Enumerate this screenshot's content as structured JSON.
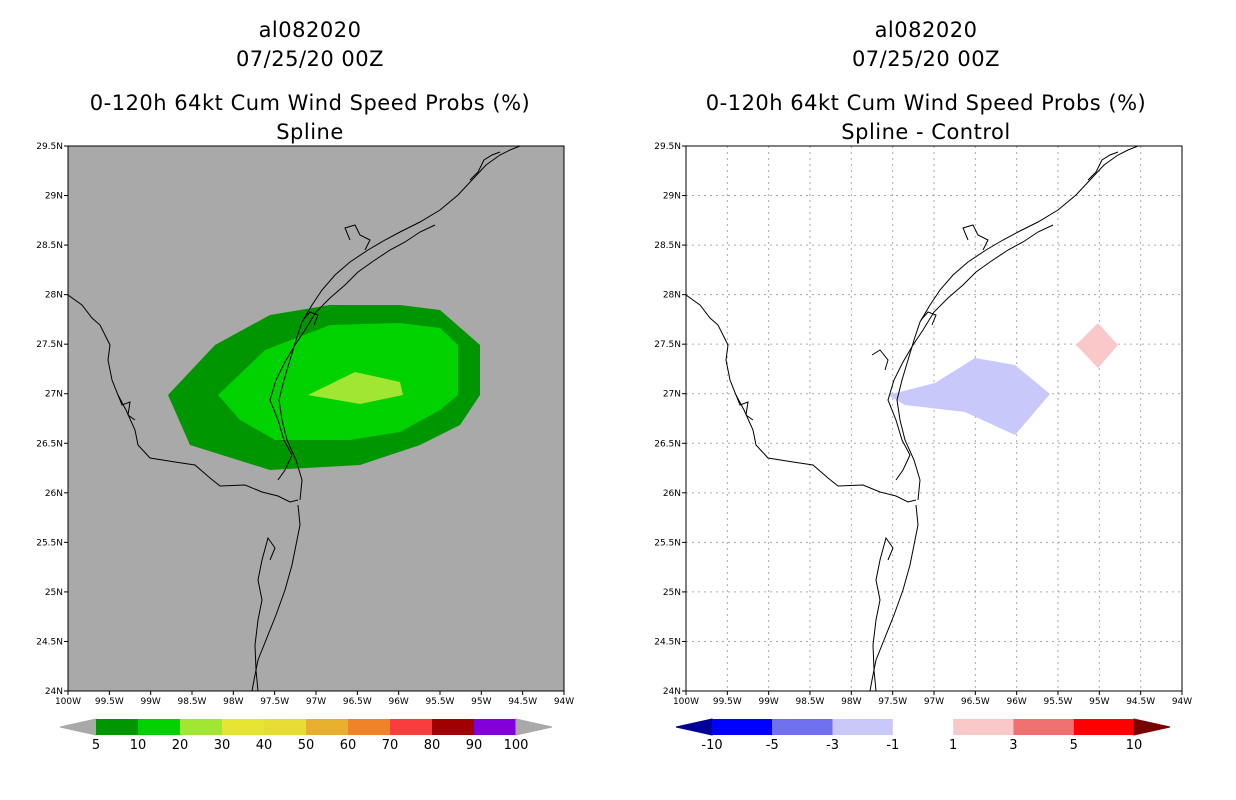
{
  "left": {
    "storm_id": "al082020",
    "datetime": "07/25/20 00Z",
    "product": "0-120h 64kt Cum Wind Speed Probs (%)",
    "subtitle": "Spline",
    "background_color": "#a9a9a9",
    "lat_labels": [
      "29.5N",
      "29N",
      "28.5N",
      "28N",
      "27.5N",
      "27N",
      "26.5N",
      "26N",
      "25.5N",
      "25N",
      "24.5N",
      "24N"
    ],
    "lon_labels": [
      "100W",
      "99.5W",
      "99W",
      "98.5W",
      "98W",
      "97.5W",
      "97W",
      "96.5W",
      "96W",
      "95.5W",
      "95W",
      "94.5W",
      "94W"
    ],
    "colorbar": {
      "colors": [
        "#009600",
        "#00d200",
        "#a0e632",
        "#e6e632",
        "#e6dc32",
        "#e6af2d",
        "#f08228",
        "#fa3c3c",
        "#a00000",
        "#8200dc"
      ],
      "labels": [
        "5",
        "10",
        "20",
        "30",
        "40",
        "50",
        "60",
        "70",
        "80",
        "90",
        "100"
      ],
      "under_color": "#a9a9a9",
      "over_color": "#a9a9a9"
    },
    "contours": [
      {
        "level": "5-10",
        "color": "#009600"
      },
      {
        "level": "10-20",
        "color": "#00d200"
      },
      {
        "level": "20-30",
        "color": "#a0e632"
      }
    ]
  },
  "right": {
    "storm_id": "al082020",
    "datetime": "07/25/20 00Z",
    "product": "0-120h 64kt Cum Wind Speed Probs (%)",
    "subtitle": "Spline - Control",
    "background_color": "#ffffff",
    "lat_labels": [
      "29.5N",
      "29N",
      "28.5N",
      "28N",
      "27.5N",
      "27N",
      "26.5N",
      "26N",
      "25.5N",
      "25N",
      "24.5N",
      "24N"
    ],
    "lon_labels": [
      "100W",
      "99.5W",
      "99W",
      "98.5W",
      "98W",
      "97.5W",
      "97W",
      "96.5W",
      "96W",
      "95.5W",
      "95W",
      "94.5W",
      "94W"
    ],
    "colorbar": {
      "colors": [
        "#0000ff",
        "#7070f0",
        "#c8c8fa",
        "#ffffff",
        "#fac8c8",
        "#f07070",
        "#ff0000"
      ],
      "labels": [
        "-10",
        "-5",
        "-3",
        "-1",
        "1",
        "3",
        "5",
        "10"
      ],
      "under_color": "#000096",
      "over_color": "#780000"
    },
    "contours": [
      {
        "level": "-3 to -1",
        "color": "#c8c8fa"
      },
      {
        "level": "1 to 3",
        "color": "#fac8c8"
      }
    ]
  }
}
